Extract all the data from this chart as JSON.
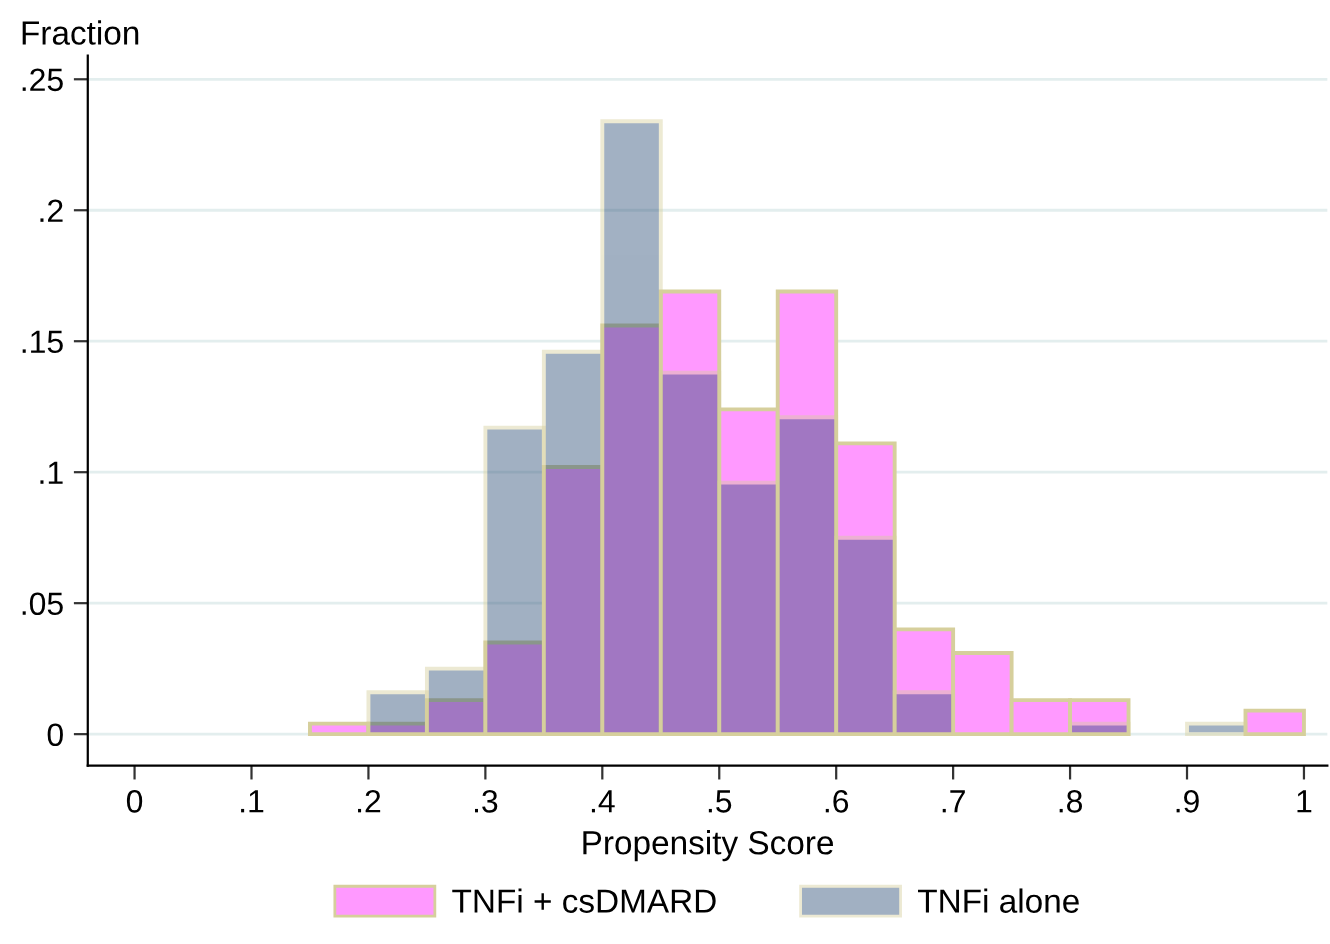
{
  "chart_data": {
    "type": "histogram",
    "xlabel": "Propensity Score",
    "ylabel": "Fraction",
    "bins": [
      0.15,
      0.2,
      0.25,
      0.3,
      0.35,
      0.4,
      0.45,
      0.5,
      0.55,
      0.6,
      0.65,
      0.7,
      0.75,
      0.8,
      0.85,
      0.9,
      0.95,
      1.0
    ],
    "series": [
      {
        "name": "TNFi + csDMARD",
        "color": "#ff99ff",
        "values": [
          0.004,
          0.004,
          0.013,
          0.035,
          0.102,
          0.156,
          0.169,
          0.124,
          0.169,
          0.111,
          0.04,
          0.031,
          0.013,
          0.013,
          0,
          0,
          0.009
        ]
      },
      {
        "name": "TNFi alone",
        "color": "#a2b1c3",
        "values": [
          0,
          0.016,
          0.025,
          0.117,
          0.146,
          0.234,
          0.138,
          0.096,
          0.121,
          0.075,
          0.016,
          0,
          0,
          0.004,
          0,
          0.004,
          0
        ]
      }
    ],
    "xlim": [
      -0.04,
      1.02
    ],
    "ylim": [
      -0.012,
      0.259
    ],
    "xticks": [
      0,
      {
        "value": 0.1,
        "label": ".1"
      },
      {
        "value": 0.2,
        "label": ".2"
      },
      {
        "value": 0.3,
        "label": ".3"
      },
      {
        "value": 0.4,
        "label": ".4"
      },
      {
        "value": 0.5,
        "label": ".5"
      },
      {
        "value": 0.6,
        "label": ".6"
      },
      {
        "value": 0.7,
        "label": ".7"
      },
      {
        "value": 0.8,
        "label": ".8"
      },
      {
        "value": 0.9,
        "label": ".9"
      },
      1
    ],
    "yticks": [
      0,
      {
        "value": 0.05,
        "label": ".05"
      },
      {
        "value": 0.1,
        "label": ".1"
      },
      {
        "value": 0.15,
        "label": ".15"
      },
      {
        "value": 0.2,
        "label": ".2"
      },
      {
        "value": 0.25,
        "label": ".25"
      }
    ],
    "grid": "y",
    "legend": "bottom"
  }
}
